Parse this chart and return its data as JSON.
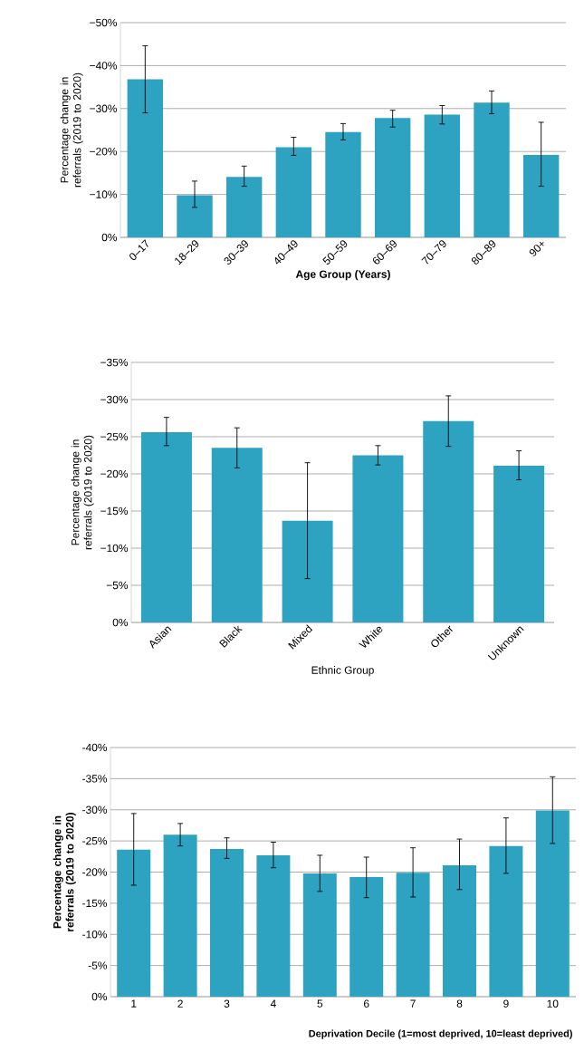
{
  "chart_data": [
    {
      "type": "bar",
      "xlabel": "Age Group (Years)",
      "ylabel": "Percentage change in referrals (2019 to 2020)",
      "categories": [
        "0–17",
        "18–29",
        "30–39",
        "40–49",
        "50–59",
        "60–69",
        "70–79",
        "80–89",
        "90+"
      ],
      "values": [
        -36.8,
        -9.8,
        -14.1,
        -21.0,
        -24.5,
        -27.8,
        -28.6,
        -31.4,
        -19.2
      ],
      "errors": [
        [
          -44.6,
          -29.0
        ],
        [
          -13.1,
          -7.0
        ],
        [
          -16.6,
          -11.9
        ],
        [
          -23.3,
          -19.1
        ],
        [
          -26.5,
          -22.7
        ],
        [
          -29.6,
          -25.7
        ],
        [
          -30.7,
          -26.4
        ],
        [
          -34.1,
          -28.8
        ],
        [
          -26.8,
          -11.9
        ]
      ],
      "color": "#2ea3c1",
      "ylim": [
        0,
        -50
      ],
      "yticks": [
        {
          "value": 0,
          "label": "0%"
        },
        {
          "value": -10,
          "label": "−10%"
        },
        {
          "value": -20,
          "label": "−20%"
        },
        {
          "value": -30,
          "label": "−30%"
        },
        {
          "value": -40,
          "label": "−40%"
        },
        {
          "value": -50,
          "label": "−50%"
        }
      ],
      "grid": "y"
    },
    {
      "type": "bar",
      "xlabel": "Ethnic Group",
      "ylabel": "Percentage change in referrals (2019 to 2020)",
      "categories": [
        "Asian",
        "Black",
        "Mixed",
        "White",
        "Other",
        "Unknown"
      ],
      "values": [
        -25.6,
        -23.5,
        -13.7,
        -22.5,
        -27.1,
        -21.1
      ],
      "errors": [
        [
          -27.6,
          -23.8
        ],
        [
          -26.2,
          -20.8
        ],
        [
          -21.5,
          -5.9
        ],
        [
          -23.8,
          -21.2
        ],
        [
          -30.5,
          -23.7
        ],
        [
          -23.1,
          -19.2
        ]
      ],
      "color": "#2ea3c1",
      "ylim": [
        0,
        -35
      ],
      "yticks": [
        {
          "value": 0,
          "label": "0%"
        },
        {
          "value": -5,
          "label": "−5%"
        },
        {
          "value": -10,
          "label": "−10%"
        },
        {
          "value": -15,
          "label": "−15%"
        },
        {
          "value": -20,
          "label": "−20%"
        },
        {
          "value": -25,
          "label": "−25%"
        },
        {
          "value": -30,
          "label": "−30%"
        },
        {
          "value": -35,
          "label": "−35%"
        }
      ],
      "grid": "y"
    },
    {
      "type": "bar",
      "xlabel": "Deprivation Decile (1=most deprived, 10=least deprived)",
      "ylabel": "Percentage change in referrals (2019 to 2020)",
      "categories": [
        "1",
        "2",
        "3",
        "4",
        "5",
        "6",
        "7",
        "8",
        "9",
        "10"
      ],
      "values": [
        -23.6,
        -26.0,
        -23.7,
        -22.7,
        -19.8,
        -19.2,
        -19.9,
        -21.1,
        -24.2,
        -29.9
      ],
      "errors": [
        [
          -29.4,
          -17.9
        ],
        [
          -27.8,
          -24.2
        ],
        [
          -25.5,
          -22.2
        ],
        [
          -24.8,
          -20.7
        ],
        [
          -22.7,
          -16.9
        ],
        [
          -22.4,
          -15.9
        ],
        [
          -23.9,
          -16.0
        ],
        [
          -25.3,
          -17.2
        ],
        [
          -28.7,
          -19.8
        ],
        [
          -35.3,
          -24.6
        ]
      ],
      "color": "#2ea3c1",
      "ylim": [
        0,
        -40
      ],
      "yticks": [
        {
          "value": 0,
          "label": "0%"
        },
        {
          "value": -5,
          "label": "-5%"
        },
        {
          "value": -10,
          "label": "-10%"
        },
        {
          "value": -15,
          "label": "-15%"
        },
        {
          "value": -20,
          "label": "-20%"
        },
        {
          "value": -25,
          "label": "-25%"
        },
        {
          "value": -30,
          "label": "-30%"
        },
        {
          "value": -35,
          "label": "-35%"
        },
        {
          "value": -40,
          "label": "-40%"
        }
      ],
      "grid": "y"
    }
  ]
}
